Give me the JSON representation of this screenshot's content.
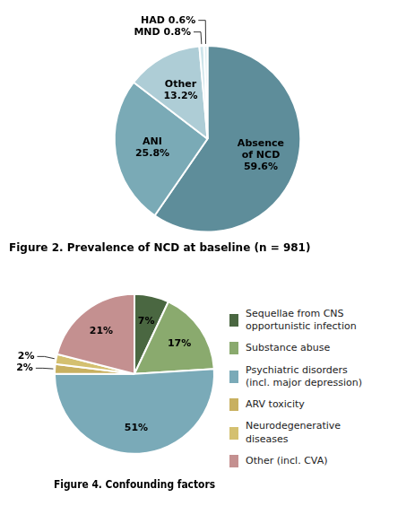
{
  "chart_data": [
    {
      "type": "pie",
      "title": "Figure 2. Prevalence of NCD at baseline (n = 981)",
      "categories": [
        "Absence\nof NCD",
        "ANI",
        "Other",
        "MND",
        "HAD"
      ],
      "values": [
        59.6,
        25.8,
        13.2,
        0.8,
        0.6
      ],
      "value_labels": [
        "59.6%",
        "25.8%",
        "13.2%",
        "0.8%",
        "0.6%"
      ],
      "colors": [
        "#5e8d9a",
        "#7aaab6",
        "#aecdd6",
        "#cde4ea",
        "#deeef2"
      ],
      "data_labels": true
    },
    {
      "type": "pie",
      "title": "Figure 4. Confounding factors",
      "categories": [
        "Sequellae from CNS\nopportunistic infection",
        "Substance abuse",
        "Psychiatric disorders\n(incl. major depression)",
        "ARV toxicity",
        "Neurodegenerative\ndiseases",
        "Other (incl. CVA)"
      ],
      "values": [
        7,
        17,
        51,
        2,
        2,
        21
      ],
      "value_labels": [
        "7%",
        "17%",
        "51%",
        "2%",
        "2%",
        "21%"
      ],
      "colors": [
        "#4a6741",
        "#8aaa6e",
        "#7aaab8",
        "#c8b060",
        "#d4c070",
        "#c49090"
      ],
      "data_labels": true,
      "legend": "right"
    }
  ]
}
